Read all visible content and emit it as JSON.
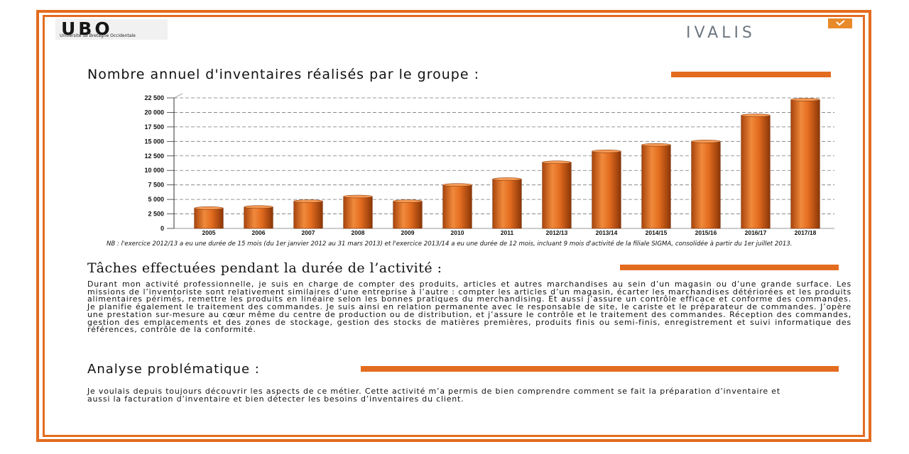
{
  "header": {
    "ubo_logo": "UBO",
    "ubo_subtitle": "Université de Bretagne Occidentale",
    "ivalis_logo": "IVALIS"
  },
  "section1": {
    "title": "Nombre annuel d'inventaires réalisés par le groupe :"
  },
  "chart_data": {
    "type": "bar",
    "categories": [
      "2005",
      "2006",
      "2007",
      "2008",
      "2009",
      "2010",
      "2011",
      "2012/13",
      "2013/14",
      "2014/15",
      "2015/16",
      "2016/17",
      "2017/18"
    ],
    "values": [
      3500,
      3700,
      4700,
      5500,
      4700,
      7500,
      8500,
      11400,
      13300,
      14400,
      15000,
      19500,
      22200
    ],
    "ylim": [
      0,
      22500
    ],
    "yticks": [
      0,
      2500,
      5000,
      7500,
      10000,
      12500,
      15000,
      17500,
      20000,
      22500
    ],
    "ytick_labels": [
      "0",
      "2 500",
      "5 000",
      "7 500",
      "10 000",
      "12 500",
      "15 000",
      "17 500",
      "20 000",
      "22 500"
    ],
    "bar_color": "#e36c1f",
    "grid": true
  },
  "chart_note": "NB : l'exercice 2012/13 a eu une durée de 15 mois (du 1er janvier 2012 au 31 mars 2013) et l'exercice 2013/14 a eu une durée de 12 mois, incluant 9 mois d'activité de la filiale SIGMA, consolidée à partir du 1er juillet 2013.",
  "section2": {
    "title": "Tâches effectuées pendant la durée de l’activité :",
    "body": "Durant mon activité professionnelle, je suis en charge de compter des produits, articles et autres marchandises au sein d’un magasin ou d’une grande surface. Les missions de l’inventoriste sont relativement similaires d’une entreprise à l’autre : compter les articles d’un magasin, écarter les marchandises détériorées et les produits alimentaires périmés, remettre les produits en linéaire selon les bonnes pratiques du merchandising. Et aussi j’assure un contrôle efficace et conforme des commandes. Je planifie également le traitement des commandes. Je suis ainsi en relation permanente avec le responsable de site, le cariste et le préparateur de commandes. J’opère une prestation sur-mesure au cœur même du centre de production ou de distribution, et j’assure le contrôle et le traitement des commandes. Réception des commandes, gestion des emplacements et des zones de stockage, gestion des stocks de matières premières, produits finis ou semi-finis, enregistrement et suivi informatique des références, contrôle de la conformité."
  },
  "section3": {
    "title": "Analyse problématique :",
    "body": "Je voulais depuis toujours découvrir les aspects de ce métier. Cette activité m’a permis de bien comprendre comment se fait la préparation d’inventaire et aussi la facturation d’inventaire et bien détecter les besoins d’inventaires du client."
  }
}
